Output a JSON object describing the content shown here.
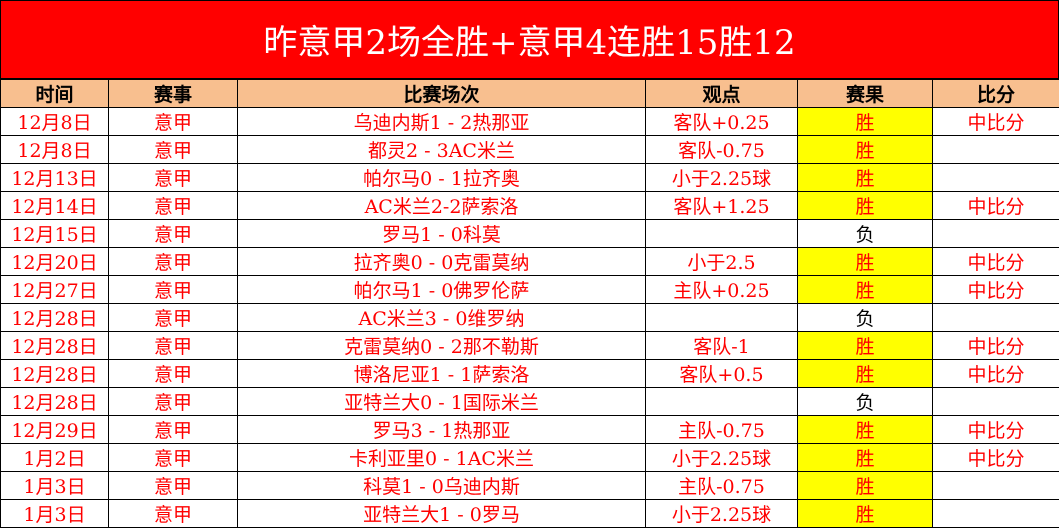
{
  "title": "昨意甲2场全胜+意甲4连胜15胜12",
  "colors": {
    "title_bg": "#ff0000",
    "header_bg": "#f8bf8f",
    "text": "#ff0000",
    "win_bg": "#ffff00"
  },
  "headers": [
    "时间",
    "赛事",
    "比赛场次",
    "观点",
    "赛果",
    "比分"
  ],
  "rows": [
    [
      "12月8日",
      "意甲",
      "乌迪内斯1 - 2热那亚",
      "客队+0.25",
      "胜",
      "中比分"
    ],
    [
      "12月8日",
      "意甲",
      "都灵2 - 3AC米兰",
      "客队-0.75",
      "胜",
      ""
    ],
    [
      "12月13日",
      "意甲",
      "帕尔马0 - 1拉齐奥",
      "小于2.25球",
      "胜",
      ""
    ],
    [
      "12月14日",
      "意甲",
      "AC米兰2-2萨索洛",
      "客队+1.25",
      "胜",
      "中比分"
    ],
    [
      "12月15日",
      "意甲",
      "罗马1 - 0科莫",
      "",
      "负",
      ""
    ],
    [
      "12月20日",
      "意甲",
      "拉齐奥0 - 0克雷莫纳",
      "小于2.5",
      "胜",
      "中比分"
    ],
    [
      "12月27日",
      "意甲",
      "帕尔马1 - 0佛罗伦萨",
      "主队+0.25",
      "胜",
      "中比分"
    ],
    [
      "12月28日",
      "意甲",
      "AC米兰3 - 0维罗纳",
      "",
      "负",
      ""
    ],
    [
      "12月28日",
      "意甲",
      "克雷莫纳0 - 2那不勒斯",
      "客队-1",
      "胜",
      "中比分"
    ],
    [
      "12月28日",
      "意甲",
      "博洛尼亚1 - 1萨索洛",
      "客队+0.5",
      "胜",
      "中比分"
    ],
    [
      "12月28日",
      "意甲",
      "亚特兰大0 - 1国际米兰",
      "",
      "负",
      ""
    ],
    [
      "12月29日",
      "意甲",
      "罗马3 - 1热那亚",
      "主队-0.75",
      "胜",
      "中比分"
    ],
    [
      "1月2日",
      "意甲",
      "卡利亚里0 - 1AC米兰",
      "小于2.25球",
      "胜",
      "中比分"
    ],
    [
      "1月3日",
      "意甲",
      "科莫1 - 0乌迪内斯",
      "主队-0.75",
      "胜",
      ""
    ],
    [
      "1月3日",
      "意甲",
      "亚特兰大1 - 0罗马",
      "小于2.25球",
      "胜",
      ""
    ]
  ]
}
